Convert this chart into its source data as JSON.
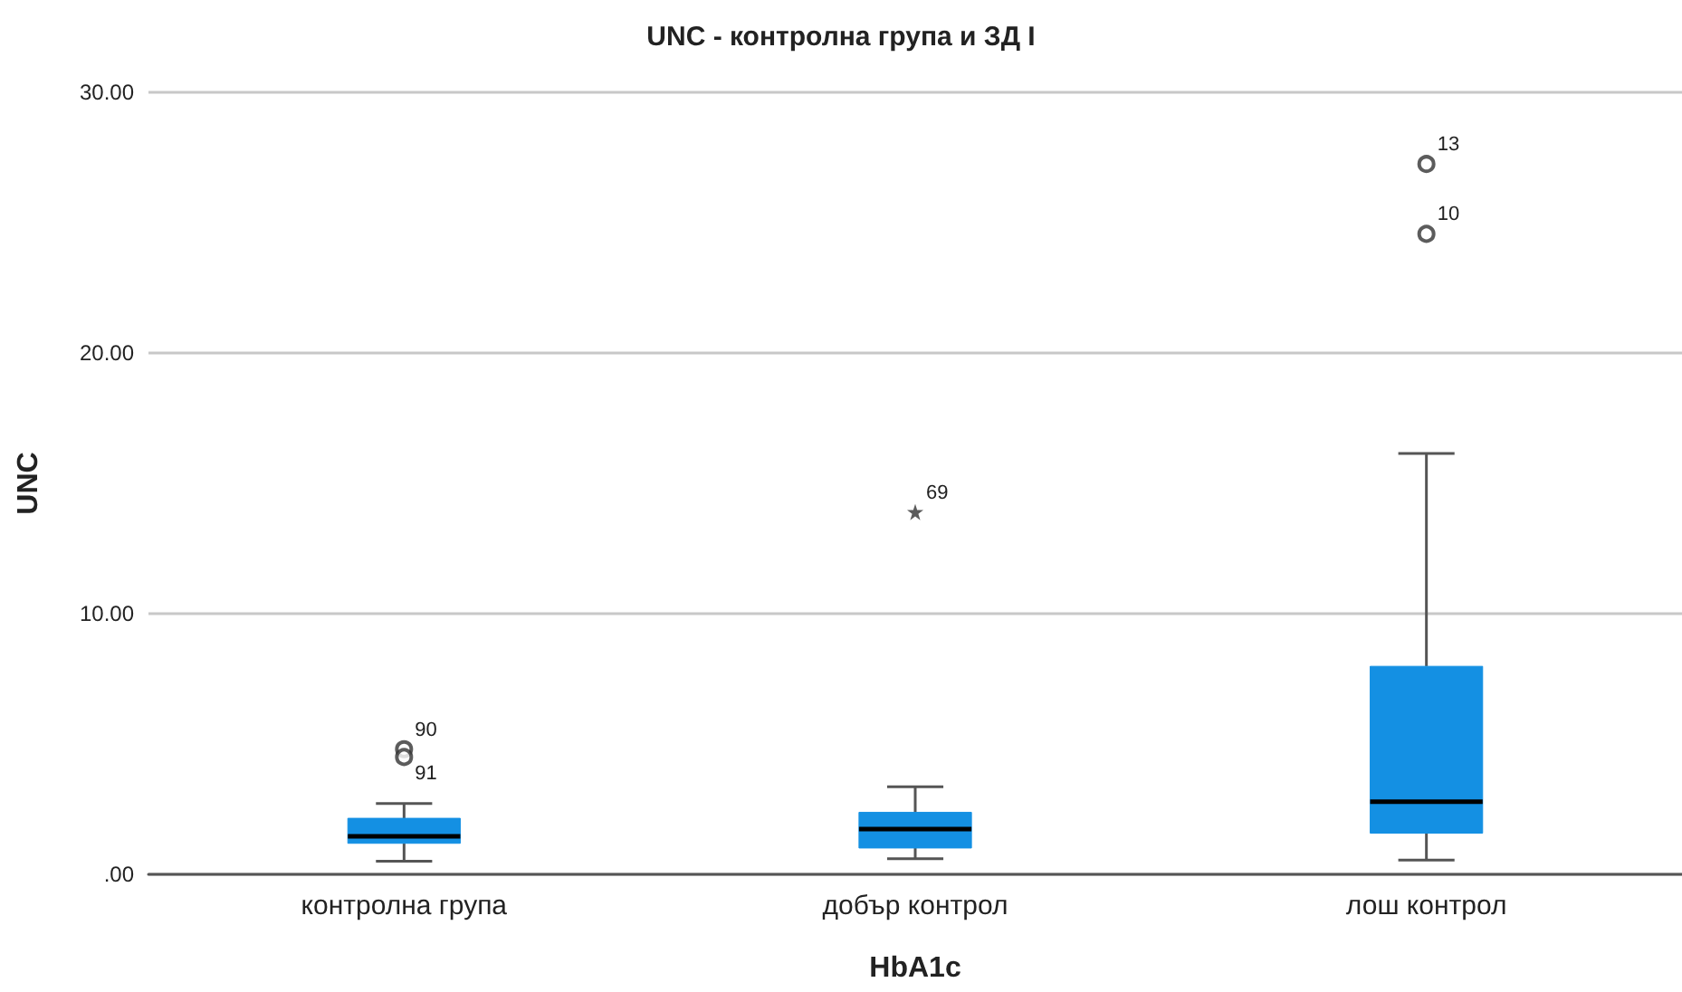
{
  "chart_data": {
    "type": "box",
    "title": "UNC - контролна група и ЗД I",
    "xlabel": "HbA1c",
    "ylabel": "UNC",
    "categories": [
      "контролна група",
      "добър контрол",
      "лош контрол"
    ],
    "series": [
      {
        "color": "#1490e3",
        "boxes": [
          {
            "low": 0.5,
            "q1": 1.19,
            "median": 1.46,
            "q3": 2.15,
            "high": 2.72
          },
          {
            "low": 0.6,
            "q1": 1.01,
            "median": 1.74,
            "q3": 2.38,
            "high": 3.36
          },
          {
            "low": 0.55,
            "q1": 1.58,
            "median": 2.79,
            "q3": 7.98,
            "high": 16.15
          }
        ]
      },
      {
        "type": "scatter",
        "color": "#333333",
        "marker": "circle",
        "x": [
          "контролна група",
          "контролна група",
          "лош контрол",
          "лош контрол"
        ],
        "values": [
          4.8,
          4.5,
          27.25,
          24.57
        ]
      },
      {
        "type": "scatter",
        "color": "#333333",
        "marker": "star",
        "x": [
          "добър контрол"
        ],
        "values": [
          13.9
        ]
      }
    ],
    "annotations": [
      {
        "text": "90",
        "x": "контролна група",
        "y": 4.8
      },
      {
        "text": "91",
        "x": "контролна група",
        "y": 4.5
      },
      {
        "text": "69",
        "x": "добър контрол",
        "y": 13.9
      },
      {
        "text": "13",
        "x": "лош контрол",
        "y": 27.25
      },
      {
        "text": "10",
        "x": "лош контрол",
        "y": 24.57
      }
    ],
    "ylim": [
      0,
      30
    ],
    "yticks": [
      {
        "value": 0,
        "label": ".00"
      },
      {
        "value": 10,
        "label": "10.00"
      },
      {
        "value": 20,
        "label": "20.00"
      },
      {
        "value": 30,
        "label": "30.00"
      }
    ],
    "grid": "y"
  }
}
